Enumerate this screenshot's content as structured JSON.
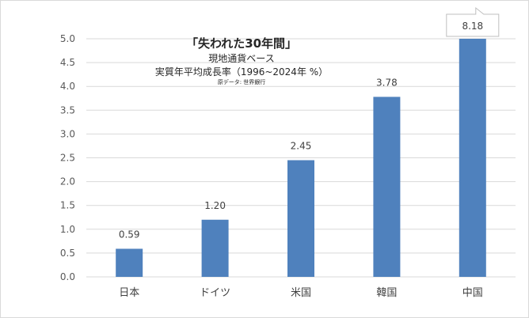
{
  "chart_data": {
    "type": "bar",
    "title": "「失われた30年間」",
    "subtitle_lines": [
      "現地通貨ベース",
      "実質年平均成長率（1996~2024年 %）"
    ],
    "source_note": "原データ: 世界銀行",
    "categories": [
      "日本",
      "ドイツ",
      "米国",
      "韓国",
      "中国"
    ],
    "values": [
      0.59,
      1.2,
      2.45,
      3.78,
      8.18
    ],
    "data_labels": [
      "0.59",
      "1.20",
      "2.45",
      "3.78",
      "8.18"
    ],
    "ylim": [
      0,
      5.0
    ],
    "yticks": [
      "0.0",
      "0.5",
      "1.0",
      "1.5",
      "2.0",
      "2.5",
      "3.0",
      "3.5",
      "4.0",
      "4.5",
      "5.0"
    ],
    "xlabel": "",
    "ylabel": "",
    "grid": true,
    "legend": "none",
    "bar_color": "#4f81bd",
    "grid_color": "#d9d9d9",
    "callout_for_overflow": true
  }
}
